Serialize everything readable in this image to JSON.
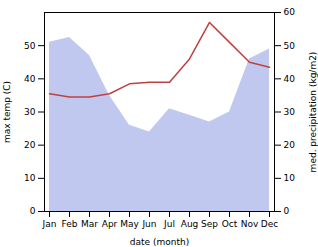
{
  "chart_data": {
    "type": "line",
    "xlabel": "date (month)",
    "ylabel": "max temp (C)",
    "y2label": "med. precipitation (kg/m2)",
    "categories": [
      "Jan",
      "Feb",
      "Mar",
      "Apr",
      "May",
      "Jun",
      "Jul",
      "Aug",
      "Sep",
      "Oct",
      "Nov",
      "Dec"
    ],
    "series": [
      {
        "type": "area",
        "axis": "y2",
        "color": "#c0c8f0",
        "values": [
          51.0,
          52.5,
          47.0,
          35.0,
          26.0,
          24.0,
          31.0,
          29.0,
          27.0,
          30.0,
          46.0,
          49.0
        ]
      },
      {
        "type": "line",
        "color": "#c04040",
        "values": [
          35.5,
          34.5,
          34.5,
          35.5,
          38.5,
          39.0,
          39.0,
          46.0,
          57.0,
          51.0,
          45.0,
          43.5
        ]
      }
    ],
    "ylim": [
      0,
      60
    ],
    "yticks": [
      0,
      10,
      20,
      30,
      40,
      50
    ],
    "y2lim": [
      0,
      60
    ],
    "y2ticks": [
      0,
      10,
      20,
      30,
      40,
      50,
      60
    ]
  }
}
